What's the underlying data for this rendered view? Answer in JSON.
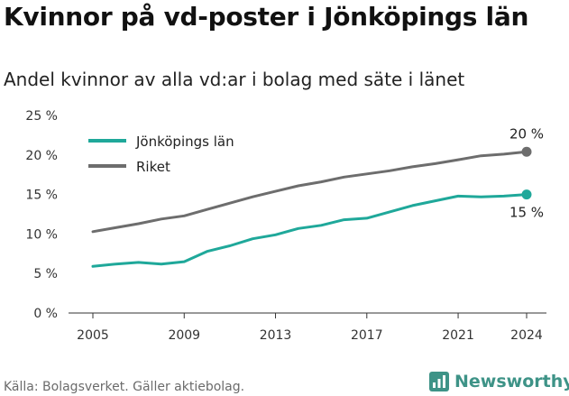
{
  "header": {
    "title": "Kvinnor på vd-poster i Jönköpings län",
    "subtitle": "Andel kvinnor av alla vd:ar i bolag med säte i länet"
  },
  "footer": {
    "source": "Källa: Bolagsverket. Gäller aktiebolag.",
    "brand": "Newsworthy"
  },
  "chart_data": {
    "type": "line",
    "title": "Kvinnor på vd-poster i Jönköpings län",
    "subtitle": "Andel kvinnor av alla vd:ar i bolag med säte i länet",
    "xlabel": "",
    "ylabel": "",
    "x": [
      2005,
      2006,
      2007,
      2008,
      2009,
      2010,
      2011,
      2012,
      2013,
      2014,
      2015,
      2016,
      2017,
      2018,
      2019,
      2020,
      2021,
      2022,
      2023,
      2024
    ],
    "x_ticks": [
      "2005",
      "2009",
      "2013",
      "2017",
      "2021",
      "2024"
    ],
    "y_ticks": [
      "0 %",
      "5 %",
      "10 %",
      "15 %",
      "20 %",
      "25 %"
    ],
    "ylim": [
      0,
      25
    ],
    "grid": false,
    "legend_position": "top-left",
    "series": [
      {
        "name": "Jönköpings län",
        "color": "#1fa89a",
        "values": [
          5.9,
          6.2,
          6.4,
          6.2,
          6.5,
          7.8,
          8.5,
          9.4,
          9.9,
          10.7,
          11.1,
          11.8,
          12.0,
          12.8,
          13.6,
          14.2,
          14.8,
          14.7,
          14.8,
          15.0
        ],
        "end_label": "15 %"
      },
      {
        "name": "Riket",
        "color": "#6d6d6d",
        "values": [
          10.3,
          10.8,
          11.3,
          11.9,
          12.3,
          13.1,
          13.9,
          14.7,
          15.4,
          16.1,
          16.6,
          17.2,
          17.6,
          18.0,
          18.5,
          18.9,
          19.4,
          19.9,
          20.1,
          20.4
        ],
        "end_label": "20 %"
      }
    ]
  }
}
